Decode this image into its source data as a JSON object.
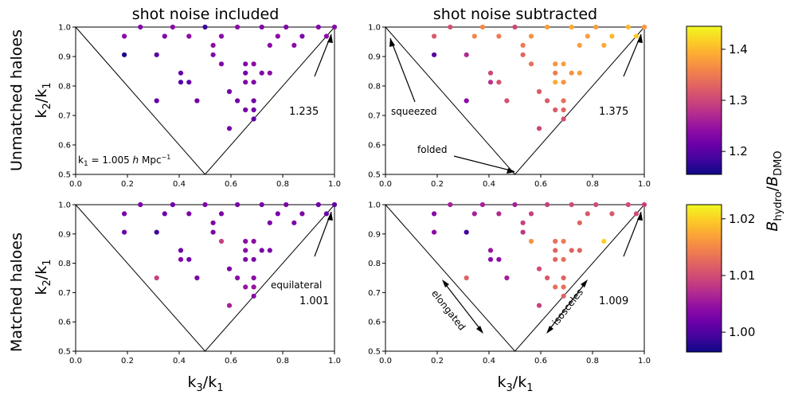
{
  "figure": {
    "column_titles": [
      "shot noise included",
      "shot noise subtracted"
    ],
    "row_titles": [
      "Unmatched haloes",
      "Matched haloes"
    ],
    "colorbar_label": "B_hydro/B_DMO"
  },
  "chart_data": [
    {
      "type": "scatter",
      "panel": "unmatched-shot-noise-included",
      "xlabel": "",
      "ylabel": "k2/k1",
      "xlim": [
        0.0,
        1.0
      ],
      "ylim": [
        0.5,
        1.0
      ],
      "xticks": [
        "0.0",
        "0.2",
        "0.4",
        "0.6",
        "0.8",
        "1.0"
      ],
      "yticks": [
        "0.5",
        "0.6",
        "0.7",
        "0.8",
        "0.9",
        "1.0"
      ],
      "colorbar": "top",
      "annotations": [
        {
          "text": "k1 = 1.005 h Mpc^-1",
          "kind": "label"
        },
        {
          "text": "1.235",
          "kind": "equilateral-value",
          "color": "#9a179b"
        }
      ],
      "points": [
        {
          "x": 0.188,
          "y": 0.969,
          "v": 1.24
        },
        {
          "x": 0.188,
          "y": 0.906,
          "v": 1.16
        },
        {
          "x": 0.25,
          "y": 1.0,
          "v": 1.23
        },
        {
          "x": 0.313,
          "y": 0.906,
          "v": 1.2
        },
        {
          "x": 0.313,
          "y": 0.75,
          "v": 1.21
        },
        {
          "x": 0.344,
          "y": 0.969,
          "v": 1.23
        },
        {
          "x": 0.375,
          "y": 1.0,
          "v": 1.24
        },
        {
          "x": 0.406,
          "y": 0.844,
          "v": 1.21
        },
        {
          "x": 0.406,
          "y": 0.813,
          "v": 1.2
        },
        {
          "x": 0.438,
          "y": 0.813,
          "v": 1.21
        },
        {
          "x": 0.438,
          "y": 0.969,
          "v": 1.24
        },
        {
          "x": 0.469,
          "y": 0.75,
          "v": 1.22
        },
        {
          "x": 0.5,
          "y": 1.0,
          "v": 1.18
        },
        {
          "x": 0.531,
          "y": 0.938,
          "v": 1.24
        },
        {
          "x": 0.531,
          "y": 0.906,
          "v": 1.23
        },
        {
          "x": 0.563,
          "y": 0.969,
          "v": 1.24
        },
        {
          "x": 0.563,
          "y": 0.875,
          "v": 1.23
        },
        {
          "x": 0.594,
          "y": 0.781,
          "v": 1.22
        },
        {
          "x": 0.594,
          "y": 0.656,
          "v": 1.22
        },
        {
          "x": 0.625,
          "y": 0.75,
          "v": 1.22
        },
        {
          "x": 0.625,
          "y": 1.0,
          "v": 1.24
        },
        {
          "x": 0.656,
          "y": 0.875,
          "v": 1.23
        },
        {
          "x": 0.656,
          "y": 0.844,
          "v": 1.22
        },
        {
          "x": 0.656,
          "y": 0.813,
          "v": 1.23
        },
        {
          "x": 0.656,
          "y": 0.719,
          "v": 1.22
        },
        {
          "x": 0.688,
          "y": 0.875,
          "v": 1.24
        },
        {
          "x": 0.688,
          "y": 0.813,
          "v": 1.23
        },
        {
          "x": 0.688,
          "y": 0.75,
          "v": 1.22
        },
        {
          "x": 0.688,
          "y": 0.719,
          "v": 1.22
        },
        {
          "x": 0.688,
          "y": 0.688,
          "v": 1.21
        },
        {
          "x": 0.719,
          "y": 0.844,
          "v": 1.23
        },
        {
          "x": 0.719,
          "y": 1.0,
          "v": 1.23
        },
        {
          "x": 0.75,
          "y": 0.844,
          "v": 1.24
        },
        {
          "x": 0.75,
          "y": 0.938,
          "v": 1.24
        },
        {
          "x": 0.781,
          "y": 0.969,
          "v": 1.24
        },
        {
          "x": 0.813,
          "y": 1.0,
          "v": 1.23
        },
        {
          "x": 0.844,
          "y": 0.938,
          "v": 1.24
        },
        {
          "x": 0.875,
          "y": 0.969,
          "v": 1.23
        },
        {
          "x": 0.938,
          "y": 1.0,
          "v": 1.23
        },
        {
          "x": 0.969,
          "y": 0.969,
          "v": 1.24
        },
        {
          "x": 1.0,
          "y": 1.0,
          "v": 1.235
        }
      ]
    },
    {
      "type": "scatter",
      "panel": "unmatched-shot-noise-subtracted",
      "xlabel": "",
      "ylabel": "",
      "xlim": [
        0.0,
        1.0
      ],
      "ylim": [
        0.5,
        1.0
      ],
      "xticks": [
        "0.0",
        "0.2",
        "0.4",
        "0.6",
        "0.8",
        "1.0"
      ],
      "yticks": [
        "0.5",
        "0.6",
        "0.7",
        "0.8",
        "0.9",
        "1.0"
      ],
      "colorbar": "top",
      "annotations": [
        {
          "text": "squeezed",
          "kind": "arrow-label"
        },
        {
          "text": "folded",
          "kind": "arrow-label"
        },
        {
          "text": "1.375",
          "kind": "equilateral-value",
          "color": "#f4883b"
        }
      ],
      "points": [
        {
          "x": 0.188,
          "y": 0.969,
          "v": 1.32
        },
        {
          "x": 0.188,
          "y": 0.906,
          "v": 1.2
        },
        {
          "x": 0.25,
          "y": 1.0,
          "v": 1.31
        },
        {
          "x": 0.313,
          "y": 0.906,
          "v": 1.27
        },
        {
          "x": 0.313,
          "y": 0.75,
          "v": 1.24
        },
        {
          "x": 0.344,
          "y": 0.969,
          "v": 1.36
        },
        {
          "x": 0.375,
          "y": 1.0,
          "v": 1.36
        },
        {
          "x": 0.406,
          "y": 0.844,
          "v": 1.3
        },
        {
          "x": 0.406,
          "y": 0.813,
          "v": 1.28
        },
        {
          "x": 0.438,
          "y": 0.813,
          "v": 1.31
        },
        {
          "x": 0.438,
          "y": 0.969,
          "v": 1.35
        },
        {
          "x": 0.469,
          "y": 0.75,
          "v": 1.31
        },
        {
          "x": 0.5,
          "y": 1.0,
          "v": 1.3
        },
        {
          "x": 0.531,
          "y": 0.938,
          "v": 1.35
        },
        {
          "x": 0.531,
          "y": 0.906,
          "v": 1.33
        },
        {
          "x": 0.563,
          "y": 0.969,
          "v": 1.37
        },
        {
          "x": 0.563,
          "y": 0.875,
          "v": 1.34
        },
        {
          "x": 0.594,
          "y": 0.781,
          "v": 1.32
        },
        {
          "x": 0.594,
          "y": 0.656,
          "v": 1.3
        },
        {
          "x": 0.625,
          "y": 0.75,
          "v": 1.32
        },
        {
          "x": 0.625,
          "y": 1.0,
          "v": 1.38
        },
        {
          "x": 0.656,
          "y": 0.875,
          "v": 1.37
        },
        {
          "x": 0.656,
          "y": 0.844,
          "v": 1.35
        },
        {
          "x": 0.656,
          "y": 0.813,
          "v": 1.39
        },
        {
          "x": 0.656,
          "y": 0.719,
          "v": 1.32
        },
        {
          "x": 0.688,
          "y": 0.875,
          "v": 1.38
        },
        {
          "x": 0.688,
          "y": 0.813,
          "v": 1.37
        },
        {
          "x": 0.688,
          "y": 0.75,
          "v": 1.34
        },
        {
          "x": 0.688,
          "y": 0.719,
          "v": 1.33
        },
        {
          "x": 0.688,
          "y": 0.688,
          "v": 1.31
        },
        {
          "x": 0.719,
          "y": 0.844,
          "v": 1.37
        },
        {
          "x": 0.719,
          "y": 1.0,
          "v": 1.39
        },
        {
          "x": 0.75,
          "y": 0.844,
          "v": 1.38
        },
        {
          "x": 0.75,
          "y": 0.938,
          "v": 1.38
        },
        {
          "x": 0.781,
          "y": 0.969,
          "v": 1.38
        },
        {
          "x": 0.813,
          "y": 1.0,
          "v": 1.38
        },
        {
          "x": 0.844,
          "y": 0.938,
          "v": 1.39
        },
        {
          "x": 0.875,
          "y": 0.969,
          "v": 1.4
        },
        {
          "x": 0.938,
          "y": 1.0,
          "v": 1.4
        },
        {
          "x": 0.969,
          "y": 0.969,
          "v": 1.41
        },
        {
          "x": 1.0,
          "y": 1.0,
          "v": 1.375
        }
      ]
    },
    {
      "type": "scatter",
      "panel": "matched-shot-noise-included",
      "xlabel": "k3/k1",
      "ylabel": "k2/k1",
      "xlim": [
        0.0,
        1.0
      ],
      "ylim": [
        0.5,
        1.0
      ],
      "xticks": [
        "0.0",
        "0.2",
        "0.4",
        "0.6",
        "0.8",
        "1.0"
      ],
      "yticks": [
        "0.5",
        "0.6",
        "0.7",
        "0.8",
        "0.9",
        "1.0"
      ],
      "colorbar": "bottom",
      "annotations": [
        {
          "text": "equilateral",
          "kind": "arrow-label"
        },
        {
          "text": "1.001",
          "kind": "equilateral-value",
          "color": "#6a00a8"
        }
      ],
      "points": [
        {
          "x": 0.188,
          "y": 0.969,
          "v": 1.003
        },
        {
          "x": 0.188,
          "y": 0.906,
          "v": 1.002
        },
        {
          "x": 0.25,
          "y": 1.0,
          "v": 1.003
        },
        {
          "x": 0.313,
          "y": 0.906,
          "v": 0.999
        },
        {
          "x": 0.313,
          "y": 0.75,
          "v": 1.009
        },
        {
          "x": 0.344,
          "y": 0.969,
          "v": 1.002
        },
        {
          "x": 0.375,
          "y": 1.0,
          "v": 1.002
        },
        {
          "x": 0.406,
          "y": 0.844,
          "v": 1.002
        },
        {
          "x": 0.406,
          "y": 0.813,
          "v": 1.003
        },
        {
          "x": 0.438,
          "y": 0.813,
          "v": 1.002
        },
        {
          "x": 0.438,
          "y": 0.969,
          "v": 1.003
        },
        {
          "x": 0.469,
          "y": 0.75,
          "v": 1.003
        },
        {
          "x": 0.5,
          "y": 1.0,
          "v": 1.003
        },
        {
          "x": 0.531,
          "y": 0.938,
          "v": 1.003
        },
        {
          "x": 0.531,
          "y": 0.906,
          "v": 1.003
        },
        {
          "x": 0.563,
          "y": 0.969,
          "v": 1.003
        },
        {
          "x": 0.563,
          "y": 0.875,
          "v": 1.009
        },
        {
          "x": 0.594,
          "y": 0.781,
          "v": 1.003
        },
        {
          "x": 0.594,
          "y": 0.656,
          "v": 1.006
        },
        {
          "x": 0.625,
          "y": 0.75,
          "v": 1.004
        },
        {
          "x": 0.625,
          "y": 1.0,
          "v": 1.003
        },
        {
          "x": 0.656,
          "y": 0.875,
          "v": 1.004
        },
        {
          "x": 0.656,
          "y": 0.844,
          "v": 1.004
        },
        {
          "x": 0.656,
          "y": 0.813,
          "v": 1.003
        },
        {
          "x": 0.656,
          "y": 0.719,
          "v": 1.005
        },
        {
          "x": 0.688,
          "y": 0.875,
          "v": 1.004
        },
        {
          "x": 0.688,
          "y": 0.813,
          "v": 1.003
        },
        {
          "x": 0.688,
          "y": 0.75,
          "v": 1.004
        },
        {
          "x": 0.688,
          "y": 0.719,
          "v": 1.005
        },
        {
          "x": 0.688,
          "y": 0.688,
          "v": 1.004
        },
        {
          "x": 0.719,
          "y": 0.844,
          "v": 1.003
        },
        {
          "x": 0.719,
          "y": 1.0,
          "v": 1.003
        },
        {
          "x": 0.75,
          "y": 0.844,
          "v": 1.003
        },
        {
          "x": 0.75,
          "y": 0.938,
          "v": 1.003
        },
        {
          "x": 0.781,
          "y": 0.969,
          "v": 1.003
        },
        {
          "x": 0.813,
          "y": 1.0,
          "v": 1.003
        },
        {
          "x": 0.844,
          "y": 0.938,
          "v": 1.003
        },
        {
          "x": 0.875,
          "y": 0.969,
          "v": 1.003
        },
        {
          "x": 0.938,
          "y": 1.0,
          "v": 1.002
        },
        {
          "x": 0.969,
          "y": 0.969,
          "v": 1.002
        },
        {
          "x": 1.0,
          "y": 1.0,
          "v": 1.001
        }
      ]
    },
    {
      "type": "scatter",
      "panel": "matched-shot-noise-subtracted",
      "xlabel": "k3/k1",
      "ylabel": "",
      "xlim": [
        0.0,
        1.0
      ],
      "ylim": [
        0.5,
        1.0
      ],
      "xticks": [
        "0.0",
        "0.2",
        "0.4",
        "0.6",
        "0.8",
        "1.0"
      ],
      "yticks": [
        "0.5",
        "0.6",
        "0.7",
        "0.8",
        "0.9",
        "1.0"
      ],
      "colorbar": "bottom",
      "annotations": [
        {
          "text": "elongated",
          "kind": "double-arrow-label"
        },
        {
          "text": "isosceles",
          "kind": "double-arrow-label"
        },
        {
          "text": "1.009",
          "kind": "equilateral-value",
          "color": "#d8456c"
        }
      ],
      "points": [
        {
          "x": 0.188,
          "y": 0.969,
          "v": 1.004
        },
        {
          "x": 0.188,
          "y": 0.906,
          "v": 1.004
        },
        {
          "x": 0.25,
          "y": 1.0,
          "v": 1.006
        },
        {
          "x": 0.313,
          "y": 0.906,
          "v": 0.999
        },
        {
          "x": 0.313,
          "y": 0.75,
          "v": 1.012
        },
        {
          "x": 0.344,
          "y": 0.969,
          "v": 1.006
        },
        {
          "x": 0.375,
          "y": 1.0,
          "v": 1.006
        },
        {
          "x": 0.406,
          "y": 0.844,
          "v": 1.005
        },
        {
          "x": 0.406,
          "y": 0.813,
          "v": 1.004
        },
        {
          "x": 0.438,
          "y": 0.813,
          "v": 1.004
        },
        {
          "x": 0.438,
          "y": 0.969,
          "v": 1.007
        },
        {
          "x": 0.469,
          "y": 0.75,
          "v": 1.006
        },
        {
          "x": 0.5,
          "y": 1.0,
          "v": 1.006
        },
        {
          "x": 0.531,
          "y": 0.938,
          "v": 1.009
        },
        {
          "x": 0.531,
          "y": 0.906,
          "v": 1.008
        },
        {
          "x": 0.563,
          "y": 0.969,
          "v": 1.009
        },
        {
          "x": 0.563,
          "y": 0.875,
          "v": 1.016
        },
        {
          "x": 0.594,
          "y": 0.781,
          "v": 1.01
        },
        {
          "x": 0.594,
          "y": 0.656,
          "v": 1.009
        },
        {
          "x": 0.625,
          "y": 0.75,
          "v": 1.011
        },
        {
          "x": 0.625,
          "y": 1.0,
          "v": 1.009
        },
        {
          "x": 0.656,
          "y": 0.875,
          "v": 1.013
        },
        {
          "x": 0.656,
          "y": 0.844,
          "v": 1.012
        },
        {
          "x": 0.656,
          "y": 0.813,
          "v": 1.012
        },
        {
          "x": 0.656,
          "y": 0.719,
          "v": 1.013
        },
        {
          "x": 0.688,
          "y": 0.875,
          "v": 1.014
        },
        {
          "x": 0.688,
          "y": 0.813,
          "v": 1.013
        },
        {
          "x": 0.688,
          "y": 0.75,
          "v": 1.012
        },
        {
          "x": 0.688,
          "y": 0.719,
          "v": 1.013
        },
        {
          "x": 0.688,
          "y": 0.688,
          "v": 1.012
        },
        {
          "x": 0.719,
          "y": 0.844,
          "v": 1.012
        },
        {
          "x": 0.719,
          "y": 1.0,
          "v": 1.01
        },
        {
          "x": 0.75,
          "y": 0.844,
          "v": 1.012
        },
        {
          "x": 0.75,
          "y": 0.938,
          "v": 1.012
        },
        {
          "x": 0.781,
          "y": 0.969,
          "v": 1.011
        },
        {
          "x": 0.813,
          "y": 1.0,
          "v": 1.01
        },
        {
          "x": 0.844,
          "y": 0.875,
          "v": 1.02
        },
        {
          "x": 0.875,
          "y": 0.969,
          "v": 1.011
        },
        {
          "x": 0.938,
          "y": 1.0,
          "v": 1.01
        },
        {
          "x": 0.969,
          "y": 0.969,
          "v": 1.01
        },
        {
          "x": 1.0,
          "y": 1.0,
          "v": 1.009
        }
      ]
    }
  ],
  "colorbars": {
    "top": {
      "range": [
        1.155,
        1.445
      ],
      "ticks": [
        "1.2",
        "1.3",
        "1.4"
      ],
      "tick_values": [
        1.2,
        1.3,
        1.4
      ]
    },
    "bottom": {
      "range": [
        0.9965,
        1.0225
      ],
      "ticks": [
        "1.00",
        "1.01",
        "1.02"
      ],
      "tick_values": [
        1.0,
        1.01,
        1.02
      ]
    }
  },
  "colormap": "plasma",
  "colormap_stops": [
    "#0d0887",
    "#41049d",
    "#6a00a8",
    "#8f0da4",
    "#b12a90",
    "#cc4778",
    "#e16462",
    "#f2844b",
    "#fca636",
    "#fcce25",
    "#f0f921"
  ]
}
